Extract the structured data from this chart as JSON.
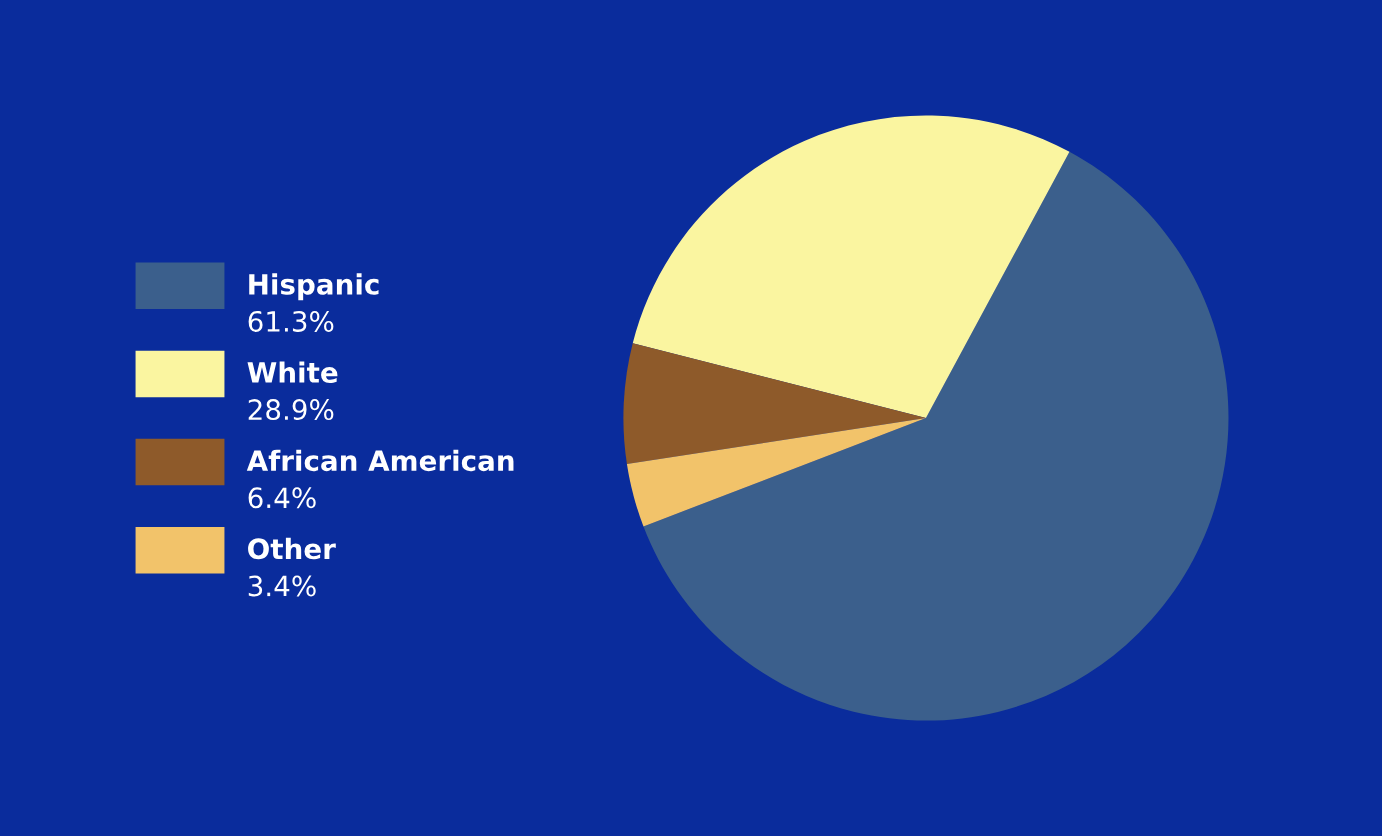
{
  "chart_data": {
    "type": "pie",
    "categories": [
      "Hispanic",
      "White",
      "African American",
      "Other"
    ],
    "values": [
      61.3,
      28.9,
      6.4,
      3.4
    ],
    "value_labels": [
      "61.3%",
      "28.9%",
      "6.4%",
      "3.4%"
    ],
    "colors": [
      "#3b5f8c",
      "#faf5a0",
      "#8e5a2a",
      "#f2c36a"
    ],
    "legend": "left"
  }
}
